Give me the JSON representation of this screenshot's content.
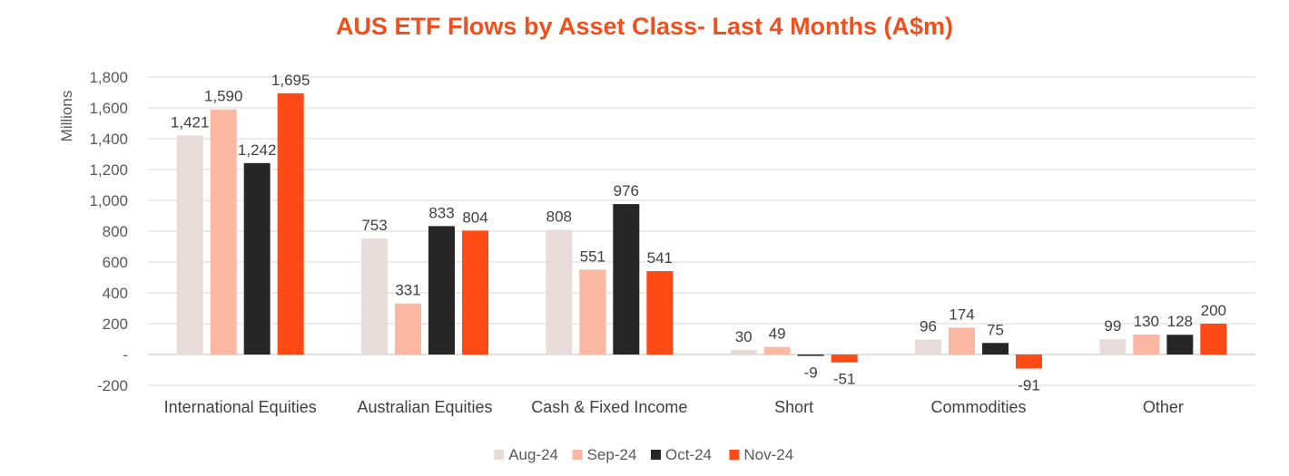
{
  "chart_data": {
    "type": "bar",
    "title": "AUS ETF Flows by Asset Class- Last 4 Months (A$m)",
    "ylabel": "Millions",
    "xlabel": "",
    "ylim": [
      -200,
      1800
    ],
    "yticks": [
      -200,
      0,
      200,
      400,
      600,
      800,
      1000,
      1200,
      1400,
      1600,
      1800
    ],
    "ytick_labels": [
      "-200",
      "-",
      "200",
      "400",
      "600",
      "800",
      "1,000",
      "1,200",
      "1,400",
      "1,600",
      "1,800"
    ],
    "grid": true,
    "legend_position": "bottom",
    "categories": [
      "International Equities",
      "Australian Equities",
      "Cash & Fixed Income",
      "Short",
      "Commodities",
      "Other"
    ],
    "series": [
      {
        "name": "Aug-24",
        "color": "#E8DCDA",
        "values": [
          1421,
          753,
          808,
          30,
          96,
          99
        ]
      },
      {
        "name": "Sep-24",
        "color": "#FBB7A2",
        "values": [
          1590,
          331,
          551,
          49,
          174,
          130
        ]
      },
      {
        "name": "Oct-24",
        "color": "#262626",
        "values": [
          1242,
          833,
          976,
          -9,
          75,
          128
        ]
      },
      {
        "name": "Nov-24",
        "color": "#FF4A16",
        "values": [
          1695,
          804,
          541,
          -51,
          -91,
          200
        ]
      }
    ],
    "title_color": "#F0501E"
  }
}
